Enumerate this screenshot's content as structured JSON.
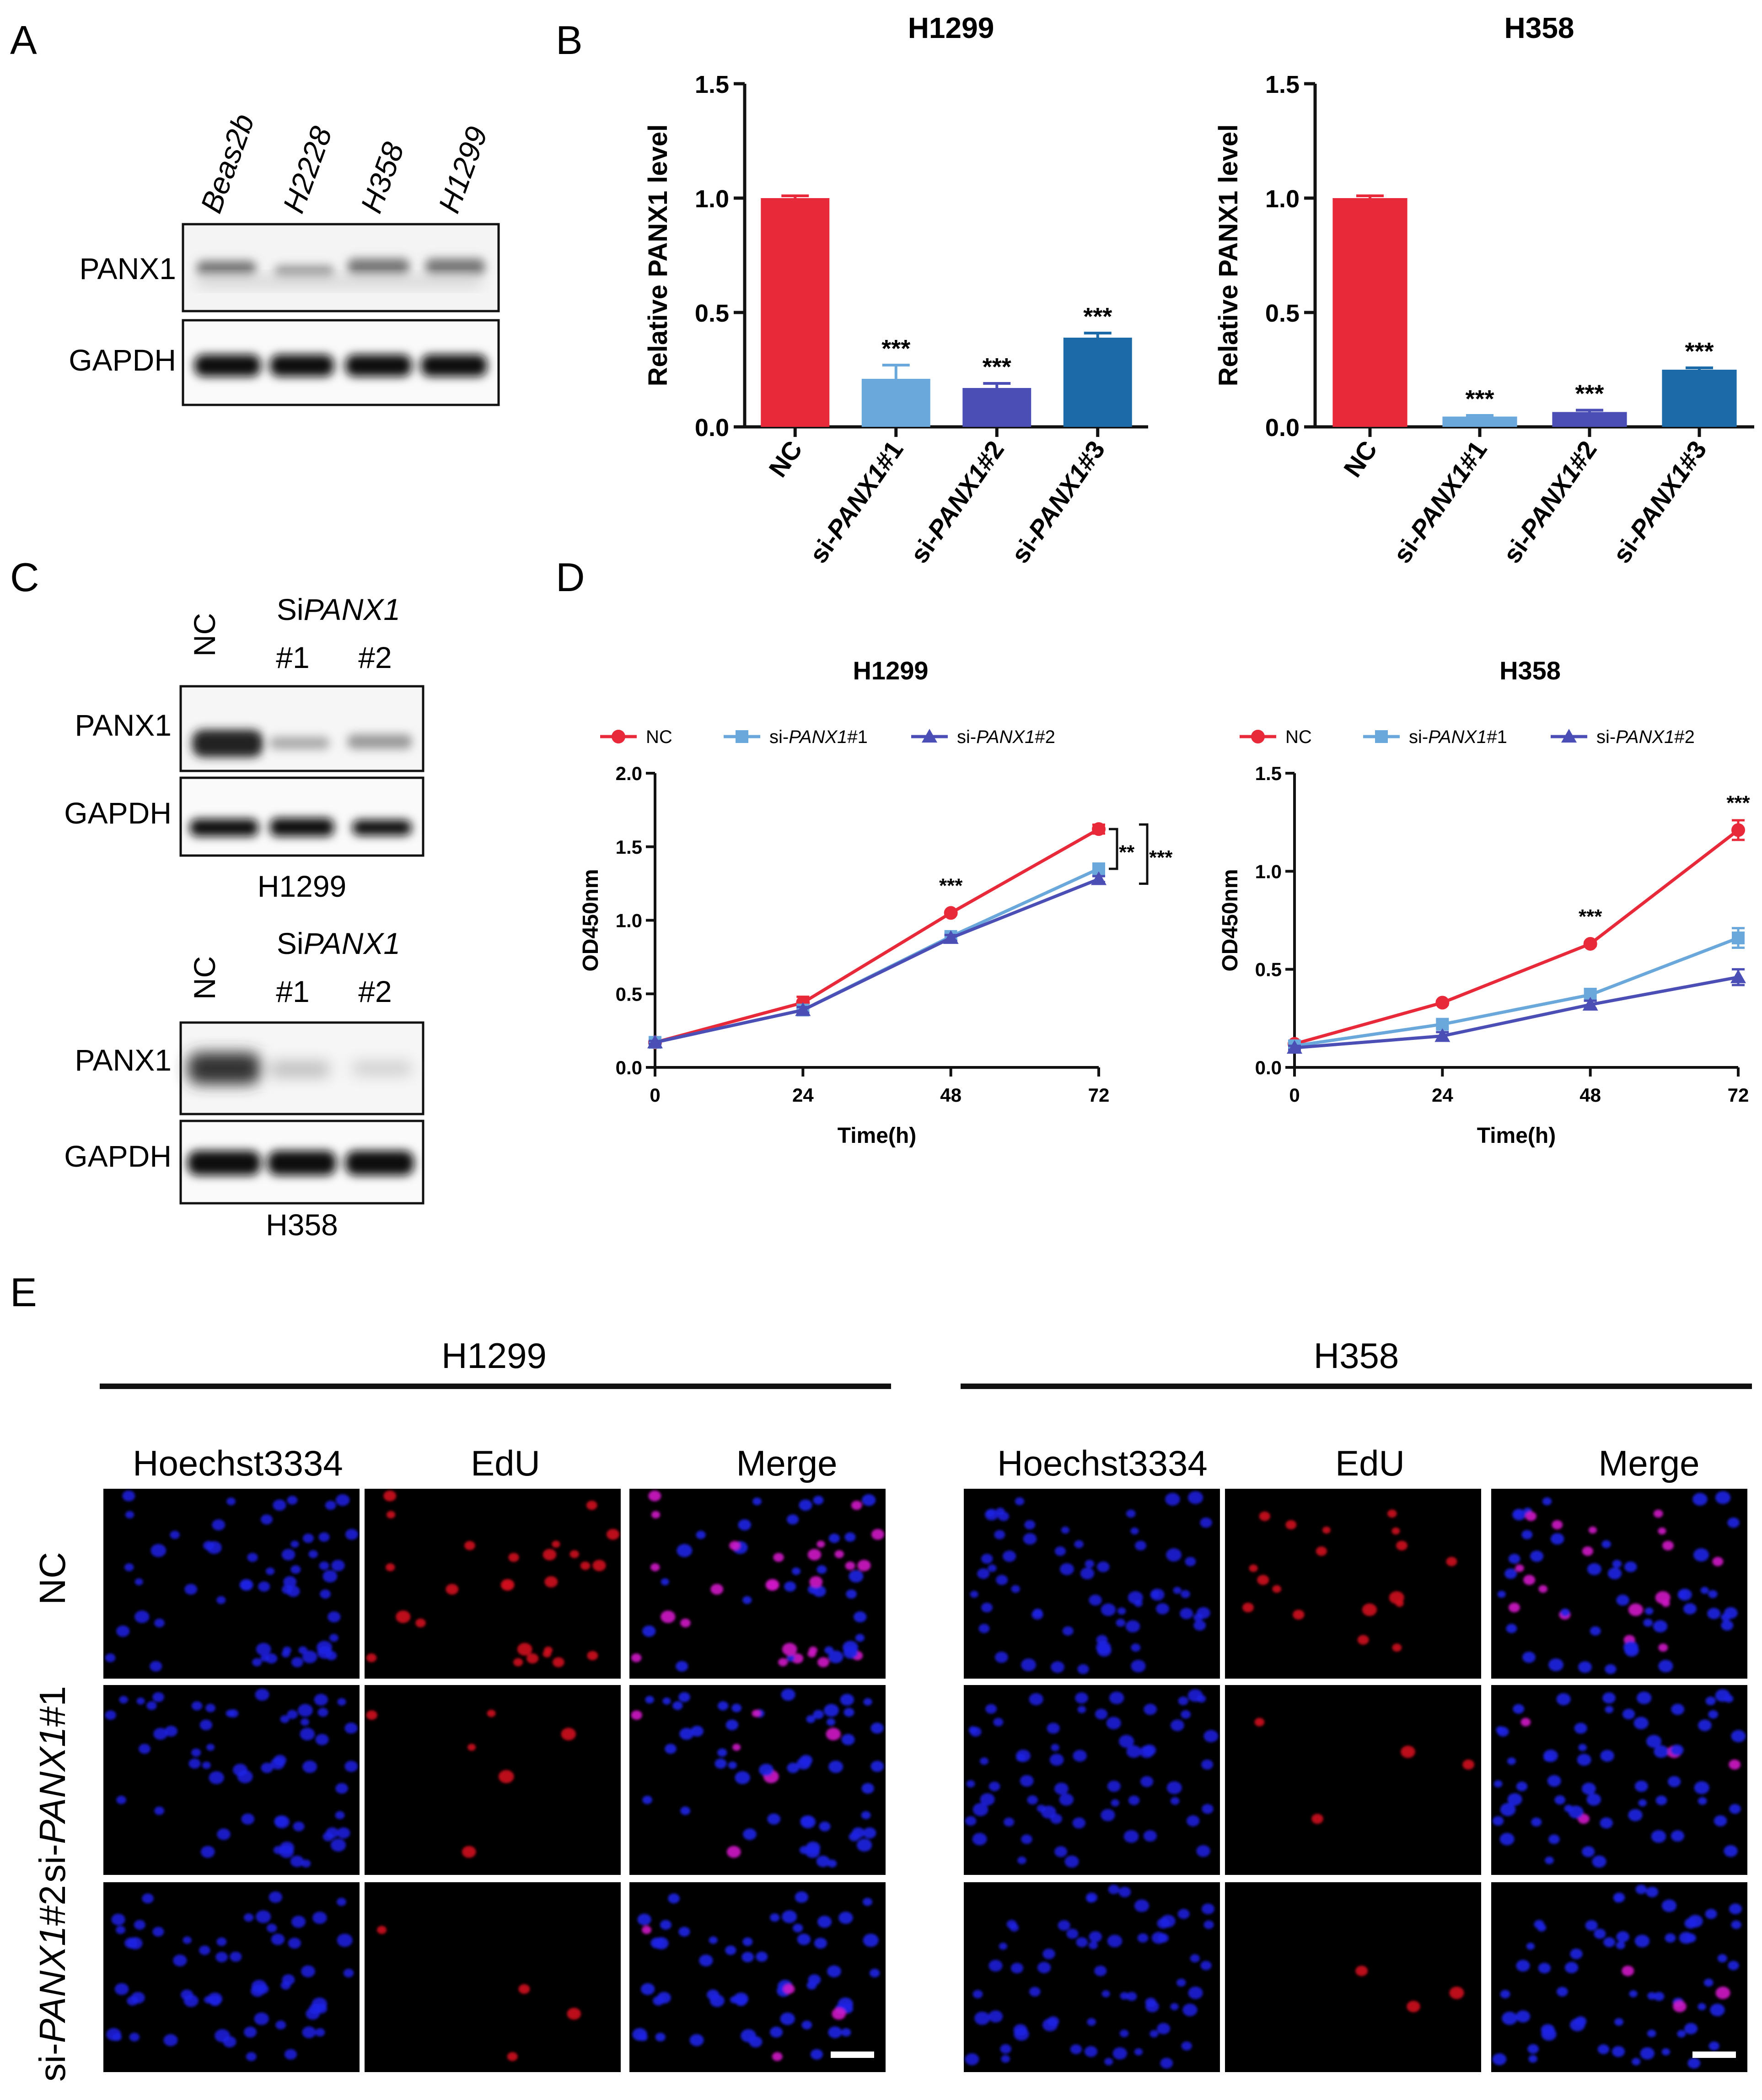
{
  "panel_letters": {
    "A": "A",
    "B": "B",
    "C": "C",
    "D": "D",
    "E": "E"
  },
  "panelA": {
    "lanes": [
      "Beas2b",
      "H2228",
      "H358",
      "H1299"
    ],
    "rows": [
      "PANX1",
      "GAPDH"
    ]
  },
  "panelC": {
    "blocks": [
      {
        "cell": "H1299",
        "nc": "NC",
        "si_prefix": "Si",
        "si_gene": "PANX1",
        "lanes": [
          "#1",
          "#2"
        ],
        "rows": [
          "PANX1",
          "GAPDH"
        ]
      },
      {
        "cell": "H358",
        "nc": "NC",
        "si_prefix": "Si",
        "si_gene": "PANX1",
        "lanes": [
          "#1",
          "#2"
        ],
        "rows": [
          "PANX1",
          "GAPDH"
        ]
      }
    ]
  },
  "panelE": {
    "groups": [
      "H1299",
      "H358"
    ],
    "columns": [
      "Hoechst3334",
      "EdU",
      "Merge"
    ],
    "rows": [
      {
        "prefix": "",
        "gene": "",
        "suffix": "NC"
      },
      {
        "prefix": "si-",
        "gene": "PANX1",
        "suffix": "#1"
      },
      {
        "prefix": "si-",
        "gene": "PANX1",
        "suffix": "#2"
      }
    ]
  },
  "chart_data": [
    {
      "id": "B-H1299",
      "type": "bar",
      "title": "H1299",
      "ylabel": "Relative PANX1 level",
      "ylim": [
        0,
        1.5
      ],
      "yticks": [
        "0.0",
        "0.5",
        "1.0",
        "1.5"
      ],
      "categories": [
        {
          "prefix": "",
          "gene": "",
          "suffix": "NC"
        },
        {
          "prefix": "si-",
          "gene": "PANX1",
          "suffix": "#1"
        },
        {
          "prefix": "si-",
          "gene": "PANX1",
          "suffix": "#2"
        },
        {
          "prefix": "si-",
          "gene": "PANX1",
          "suffix": "#3"
        }
      ],
      "values": [
        1.0,
        0.21,
        0.17,
        0.39
      ],
      "errors": [
        0.01,
        0.06,
        0.02,
        0.02
      ],
      "significance": [
        "",
        "***",
        "***",
        "***"
      ],
      "colors": [
        "#e8293a",
        "#6aa8dc",
        "#4a4eb5",
        "#1d6aa8"
      ]
    },
    {
      "id": "B-H358",
      "type": "bar",
      "title": "H358",
      "ylabel": "Relative PANX1 level",
      "ylim": [
        0,
        1.5
      ],
      "yticks": [
        "0.0",
        "0.5",
        "1.0",
        "1.5"
      ],
      "categories": [
        {
          "prefix": "",
          "gene": "",
          "suffix": "NC"
        },
        {
          "prefix": "si-",
          "gene": "PANX1",
          "suffix": "#1"
        },
        {
          "prefix": "si-",
          "gene": "PANX1",
          "suffix": "#2"
        },
        {
          "prefix": "si-",
          "gene": "PANX1",
          "suffix": "#3"
        }
      ],
      "values": [
        1.0,
        0.045,
        0.065,
        0.25
      ],
      "errors": [
        0.01,
        0.005,
        0.008,
        0.008
      ],
      "significance": [
        "",
        "***",
        "***",
        "***"
      ],
      "colors": [
        "#e8293a",
        "#6aa8dc",
        "#4a4eb5",
        "#1d6aa8"
      ]
    },
    {
      "id": "D-H1299",
      "type": "line",
      "title": "H1299",
      "xlabel": "Time(h)",
      "ylabel": "OD450nm",
      "x": [
        0,
        24,
        48,
        72
      ],
      "xlim": [
        0,
        72
      ],
      "ylim": [
        0,
        2.0
      ],
      "yticks": [
        "0.0",
        "0.5",
        "1.0",
        "1.5",
        "2.0"
      ],
      "series": [
        {
          "label": {
            "prefix": "",
            "gene": "",
            "suffix": "NC"
          },
          "values": [
            0.17,
            0.44,
            1.05,
            1.62
          ],
          "errors": [
            0.01,
            0.04,
            0.01,
            0.03
          ],
          "color": "#e8293a",
          "marker": "circle"
        },
        {
          "label": {
            "prefix": "si-",
            "gene": "PANX1",
            "suffix": "#1"
          },
          "values": [
            0.17,
            0.39,
            0.89,
            1.35
          ],
          "errors": [
            0.01,
            0.02,
            0.02,
            0.02
          ],
          "color": "#6aa8dc",
          "marker": "square"
        },
        {
          "label": {
            "prefix": "si-",
            "gene": "PANX1",
            "suffix": "#2"
          },
          "values": [
            0.17,
            0.39,
            0.88,
            1.28
          ],
          "errors": [
            0.01,
            0.02,
            0.02,
            0.02
          ],
          "color": "#4a4eb5",
          "marker": "triangle"
        }
      ],
      "annotations": [
        {
          "text": "***",
          "x": 48,
          "y": 1.05
        },
        {
          "text": "**",
          "bracket": "NC vs si-PANX1#1"
        },
        {
          "text": "***",
          "bracket": "NC vs si-PANX1#2"
        }
      ]
    },
    {
      "id": "D-H358",
      "type": "line",
      "title": "H358",
      "xlabel": "Time(h)",
      "ylabel": "OD450nm",
      "x": [
        0,
        24,
        48,
        72
      ],
      "xlim": [
        0,
        72
      ],
      "ylim": [
        0,
        1.5
      ],
      "yticks": [
        "0.0",
        "0.5",
        "1.0",
        "1.5"
      ],
      "series": [
        {
          "label": {
            "prefix": "",
            "gene": "",
            "suffix": "NC"
          },
          "values": [
            0.12,
            0.33,
            0.63,
            1.21
          ],
          "errors": [
            0.01,
            0.01,
            0.01,
            0.05
          ],
          "color": "#e8293a",
          "marker": "circle"
        },
        {
          "label": {
            "prefix": "si-",
            "gene": "PANX1",
            "suffix": "#1"
          },
          "values": [
            0.11,
            0.22,
            0.37,
            0.66
          ],
          "errors": [
            0.01,
            0.02,
            0.03,
            0.05
          ],
          "color": "#6aa8dc",
          "marker": "square"
        },
        {
          "label": {
            "prefix": "si-",
            "gene": "PANX1",
            "suffix": "#2"
          },
          "values": [
            0.1,
            0.16,
            0.32,
            0.46
          ],
          "errors": [
            0.01,
            0.02,
            0.02,
            0.04
          ],
          "color": "#4a4eb5",
          "marker": "triangle"
        }
      ],
      "annotations": [
        {
          "text": "***",
          "x": 48,
          "y": 0.63
        },
        {
          "text": "***",
          "x": 72,
          "y": 1.21
        }
      ]
    }
  ]
}
